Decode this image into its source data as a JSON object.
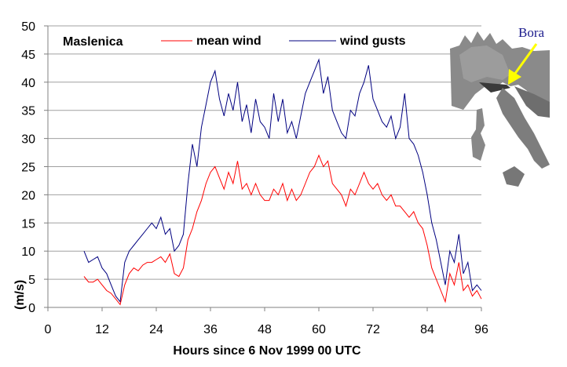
{
  "chart_data": {
    "type": "line",
    "title": "Maslenica",
    "xlabel": "Hours since 6 Nov 1999 00 UTC",
    "ylabel": "(m/s)",
    "xlim": [
      0,
      96
    ],
    "ylim": [
      0,
      50
    ],
    "xticks": [
      0,
      12,
      24,
      36,
      48,
      60,
      72,
      84,
      96
    ],
    "yticks": [
      0,
      5,
      10,
      15,
      20,
      25,
      30,
      35,
      40,
      45,
      50
    ],
    "grid": "horizontal",
    "legend_placement": "top",
    "x": [
      8,
      9,
      10,
      11,
      12,
      13,
      14,
      15,
      16,
      17,
      18,
      19,
      20,
      21,
      22,
      23,
      24,
      25,
      26,
      27,
      28,
      29,
      30,
      31,
      32,
      33,
      34,
      35,
      36,
      37,
      38,
      39,
      40,
      41,
      42,
      43,
      44,
      45,
      46,
      47,
      48,
      49,
      50,
      51,
      52,
      53,
      54,
      55,
      56,
      57,
      58,
      59,
      60,
      61,
      62,
      63,
      64,
      65,
      66,
      67,
      68,
      69,
      70,
      71,
      72,
      73,
      74,
      75,
      76,
      77,
      78,
      79,
      80,
      81,
      82,
      83,
      84,
      85,
      86,
      87,
      88,
      89,
      90,
      91,
      92,
      93,
      94,
      95,
      96
    ],
    "series": [
      {
        "name": "mean wind",
        "color": "#ff0000",
        "values": [
          5.5,
          4.5,
          4.5,
          5,
          4,
          3,
          2.5,
          1.5,
          0.5,
          4,
          6,
          7,
          6.5,
          7.5,
          8,
          8,
          8.5,
          9,
          8,
          9.5,
          6,
          5.5,
          7,
          12,
          14,
          17,
          19,
          22,
          24,
          25,
          23,
          21,
          24,
          22,
          26,
          21,
          22,
          20,
          22,
          20,
          19,
          19,
          21,
          20,
          22,
          19,
          21,
          19,
          20,
          22,
          24,
          25,
          27,
          25,
          26,
          22,
          21,
          20,
          18,
          21,
          20,
          22,
          24,
          22,
          21,
          22,
          20,
          19,
          20,
          18,
          18,
          17,
          16,
          17,
          15,
          14,
          11,
          7,
          5,
          3,
          1,
          6,
          4,
          8,
          3,
          4,
          2,
          3,
          1.5
        ]
      },
      {
        "name": "wind gusts",
        "color": "#000080",
        "values": [
          10,
          8,
          8.5,
          9,
          7,
          6,
          4,
          2,
          1,
          8,
          10,
          11,
          12,
          13,
          14,
          15,
          14,
          16,
          13,
          14,
          10,
          11,
          13,
          22,
          29,
          25,
          32,
          36,
          40,
          42,
          37,
          34,
          38,
          35,
          40,
          33,
          36,
          31,
          37,
          33,
          32,
          30,
          38,
          33,
          37,
          31,
          33,
          30,
          34,
          38,
          40,
          42,
          44,
          38,
          41,
          35,
          33,
          31,
          30,
          35,
          34,
          38,
          40,
          43,
          37,
          35,
          33,
          32,
          34,
          30,
          32,
          38,
          30,
          29,
          27,
          24,
          20,
          15,
          12,
          8,
          4,
          10,
          8,
          13,
          6,
          8,
          3,
          4,
          3
        ]
      }
    ]
  },
  "inset": {
    "label": "Bora",
    "arrow_color": "#ffff00",
    "label_color": "#1a1a8c"
  }
}
